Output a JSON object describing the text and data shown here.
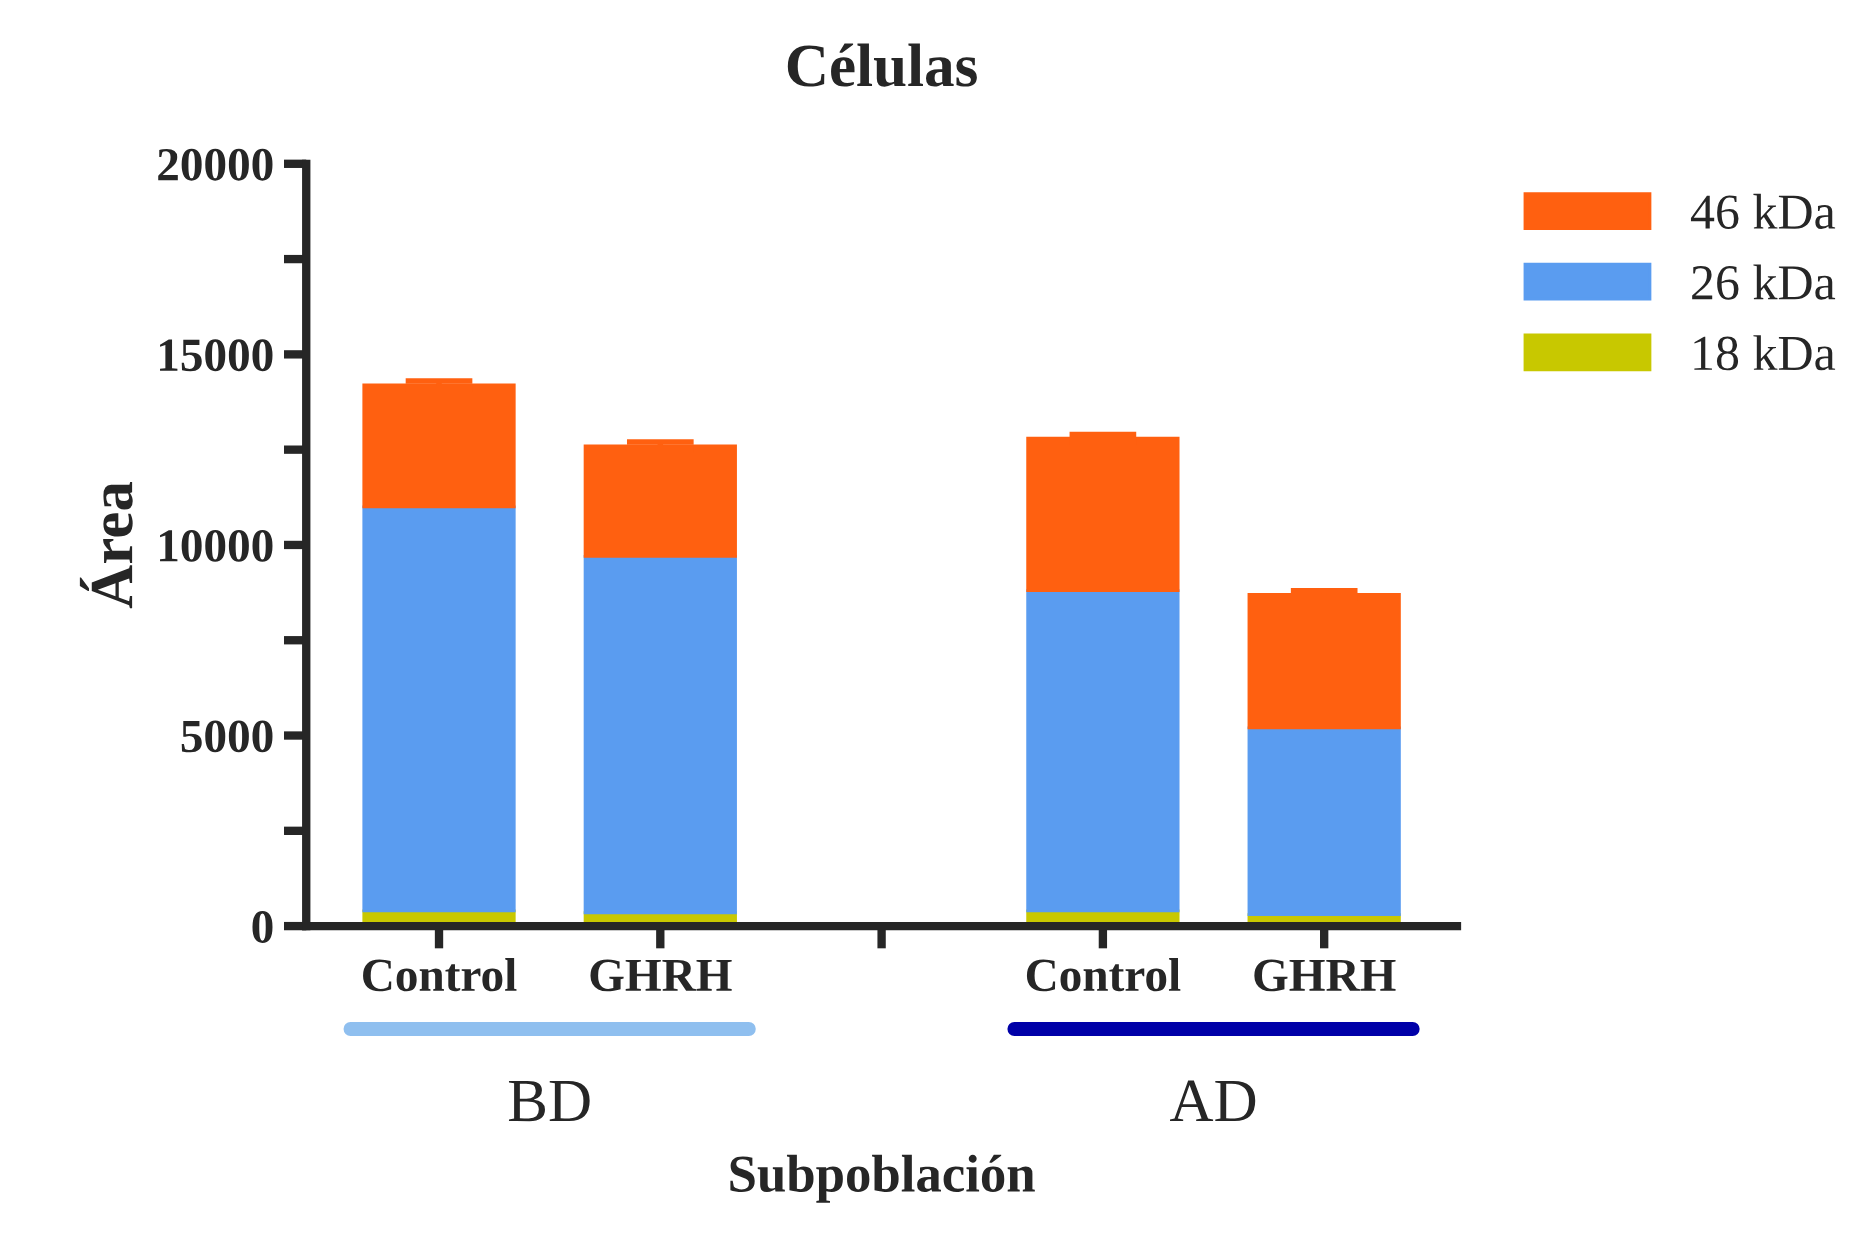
{
  "chart_data": {
    "type": "bar",
    "title": "Células",
    "xlabel": "Subpoblación",
    "ylabel": "Área",
    "categories": [
      "Control",
      "GHRH",
      null,
      "Control",
      "GHRH"
    ],
    "stacked": true,
    "series": [
      {
        "name": "18 kDa",
        "color": "#c8c800",
        "values": [
          400,
          350,
          null,
          400,
          300
        ]
      },
      {
        "name": "26 kDa",
        "color": "#5a9cf0",
        "values": [
          10600,
          9350,
          null,
          8400,
          4900
        ]
      },
      {
        "name": "46 kDa",
        "color": "#ff6010",
        "values": [
          3200,
          2900,
          null,
          4000,
          3500
        ],
        "errors": [
          100,
          100,
          null,
          100,
          100
        ]
      }
    ],
    "ylim": [
      0,
      20000
    ],
    "yticks": [
      0,
      {
        "value": 2500,
        "label": null
      },
      5000,
      {
        "value": 7500,
        "label": null
      },
      10000,
      {
        "value": 12500,
        "label": null
      },
      15000,
      {
        "value": 17500,
        "label": null
      },
      20000
    ],
    "annotations": [
      "BD",
      "AD"
    ],
    "legend": "top right",
    "grid": false
  }
}
